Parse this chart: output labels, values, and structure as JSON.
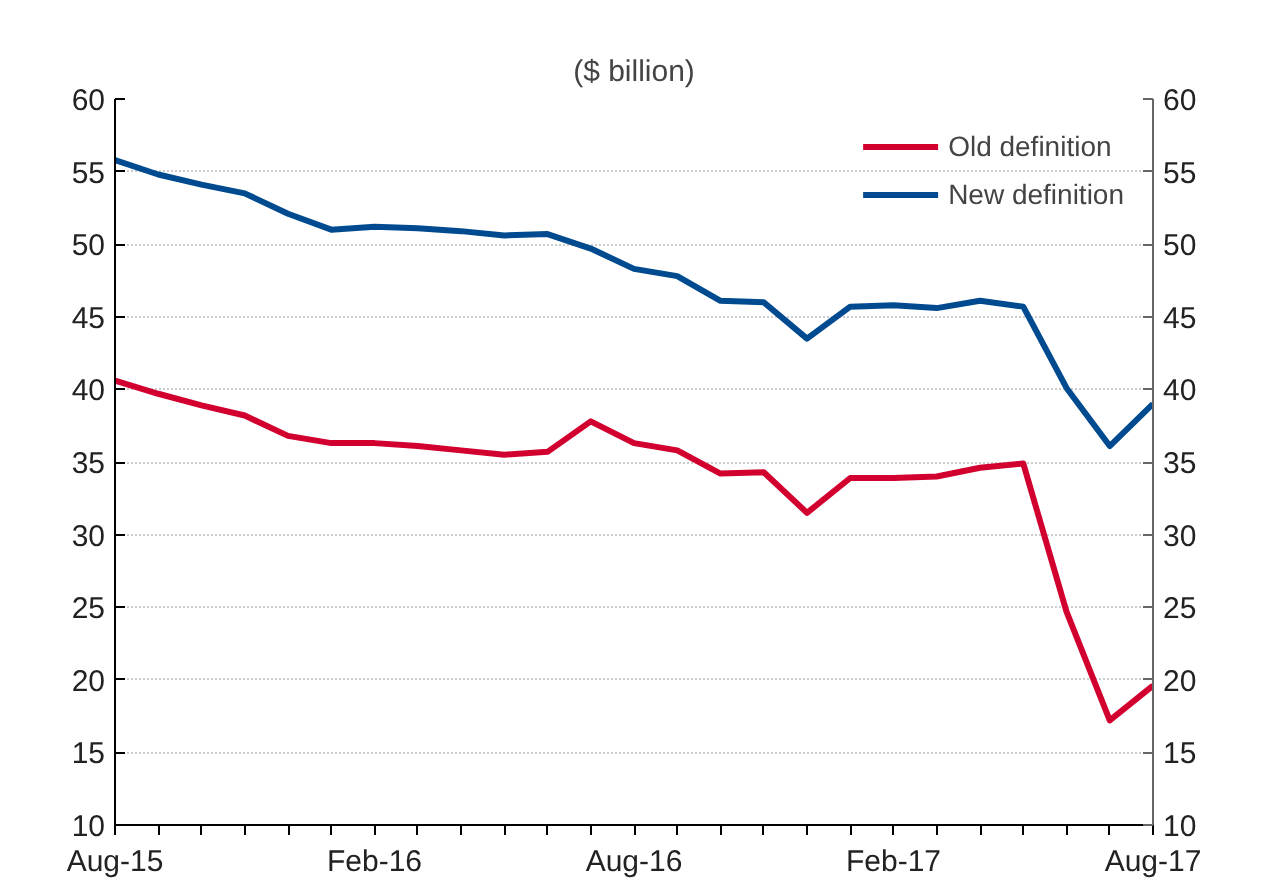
{
  "chart_data": {
    "type": "line",
    "subtitle": "($ billion)",
    "x": [
      "2015-08",
      "2015-09",
      "2015-10",
      "2015-11",
      "2015-12",
      "2016-01",
      "2016-02",
      "2016-03",
      "2016-04",
      "2016-05",
      "2016-06",
      "2016-07",
      "2016-08",
      "2016-09",
      "2016-10",
      "2016-11",
      "2016-12",
      "2017-01",
      "2017-02",
      "2017-03",
      "2017-04",
      "2017-05",
      "2017-06",
      "2017-07",
      "2017-08"
    ],
    "series": [
      {
        "name": "Old definition",
        "color": "#d2002f",
        "values": [
          40.6,
          39.7,
          38.9,
          38.2,
          36.8,
          36.3,
          36.3,
          36.1,
          35.8,
          35.5,
          35.7,
          37.8,
          36.3,
          35.8,
          34.2,
          34.3,
          31.5,
          33.9,
          33.9,
          34.0,
          34.6,
          34.9,
          24.7,
          17.2,
          19.6
        ]
      },
      {
        "name": "New definition",
        "color": "#004a8f",
        "values": [
          55.8,
          54.8,
          54.1,
          53.5,
          52.1,
          51.0,
          51.2,
          51.1,
          50.9,
          50.6,
          50.7,
          49.7,
          48.3,
          47.8,
          46.1,
          46.0,
          43.5,
          45.7,
          45.8,
          45.6,
          46.1,
          45.7,
          40.1,
          36.1,
          39.0
        ]
      }
    ],
    "xlim": [
      "2015-08",
      "2017-08"
    ],
    "xticks": [
      {
        "value": "2015-08",
        "label": "Aug-15"
      },
      {
        "value": "2015-09",
        "label": null
      },
      {
        "value": "2015-10",
        "label": null
      },
      {
        "value": "2015-11",
        "label": null
      },
      {
        "value": "2015-12",
        "label": null
      },
      {
        "value": "2016-01",
        "label": null
      },
      {
        "value": "2016-02",
        "label": "Feb-16"
      },
      {
        "value": "2016-03",
        "label": null
      },
      {
        "value": "2016-04",
        "label": null
      },
      {
        "value": "2016-05",
        "label": null
      },
      {
        "value": "2016-06",
        "label": null
      },
      {
        "value": "2016-07",
        "label": null
      },
      {
        "value": "2016-08",
        "label": "Aug-16"
      },
      {
        "value": "2016-09",
        "label": null
      },
      {
        "value": "2016-10",
        "label": null
      },
      {
        "value": "2016-11",
        "label": null
      },
      {
        "value": "2016-12",
        "label": null
      },
      {
        "value": "2017-01",
        "label": null
      },
      {
        "value": "2017-02",
        "label": "Feb-17"
      },
      {
        "value": "2017-03",
        "label": null
      },
      {
        "value": "2017-04",
        "label": null
      },
      {
        "value": "2017-05",
        "label": null
      },
      {
        "value": "2017-06",
        "label": null
      },
      {
        "value": "2017-07",
        "label": null
      },
      {
        "value": "2017-08",
        "label": "Aug-17"
      }
    ],
    "ylim": [
      10,
      60
    ],
    "yticks": [
      10,
      15,
      20,
      25,
      30,
      35,
      40,
      45,
      50,
      55,
      60
    ],
    "y2lim": [
      10,
      60
    ],
    "y2ticks": [
      10,
      15,
      20,
      25,
      30,
      35,
      40,
      45,
      50,
      55,
      60
    ],
    "grid": "y",
    "legend": "top right",
    "line_style": "solid",
    "marker": "none"
  }
}
